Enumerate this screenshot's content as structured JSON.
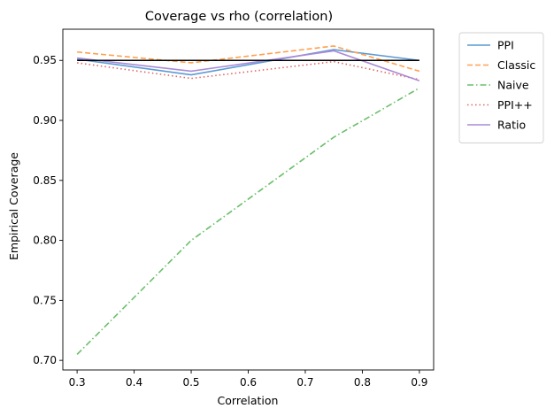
{
  "chart_data": {
    "type": "line",
    "title": "Coverage vs rho (correlation)",
    "xlabel": "Correlation",
    "ylabel": "Empirical Coverage",
    "x": [
      0.3,
      0.5,
      0.75,
      0.9
    ],
    "xlim": [
      0.275,
      0.925
    ],
    "ylim": [
      0.692,
      0.976
    ],
    "xticks": [
      "0.3",
      "0.4",
      "0.5",
      "0.6",
      "0.7",
      "0.8",
      "0.9"
    ],
    "yticks": [
      "0.70",
      "0.75",
      "0.80",
      "0.85",
      "0.90",
      "0.95"
    ],
    "grid": false,
    "legend_position": "outside-right",
    "reference_line": {
      "y": 0.95,
      "color": "#000000"
    },
    "series": [
      {
        "name": "PPI",
        "values": [
          0.951,
          0.938,
          0.959,
          0.95
        ],
        "color": "#5a9bd4",
        "style": "solid"
      },
      {
        "name": "Classic",
        "values": [
          0.957,
          0.948,
          0.962,
          0.941
        ],
        "color": "#ffa04f",
        "style": "dashed"
      },
      {
        "name": "Naive",
        "values": [
          0.705,
          0.8,
          0.886,
          0.927
        ],
        "color": "#6cbf6c",
        "style": "dashdot"
      },
      {
        "name": "PPI++",
        "values": [
          0.948,
          0.935,
          0.949,
          0.934
        ],
        "color": "#e06666",
        "style": "dotted"
      },
      {
        "name": "Ratio",
        "values": [
          0.952,
          0.941,
          0.958,
          0.933
        ],
        "color": "#ab8ad6",
        "style": "solid"
      }
    ]
  }
}
